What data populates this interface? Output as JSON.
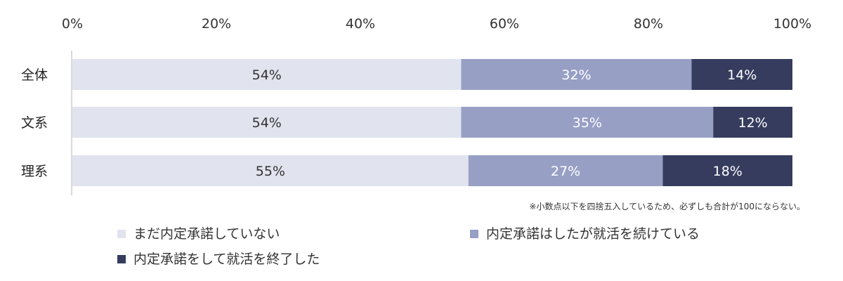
{
  "chart_data": {
    "type": "bar",
    "orientation": "horizontal",
    "stacked": true,
    "xlim": [
      0,
      100
    ],
    "x_ticks": [
      "0%",
      "20%",
      "40%",
      "60%",
      "80%",
      "100%"
    ],
    "categories": [
      "全体",
      "文系",
      "理系"
    ],
    "series": [
      {
        "name": "まだ内定承諾していない",
        "values": [
          54,
          54,
          55
        ],
        "labels": [
          "54%",
          "54%",
          "55%"
        ],
        "color": "#e1e3ef",
        "label_color": "#333333"
      },
      {
        "name": "内定承諾はしたが就活を続けている",
        "values": [
          32,
          35,
          27
        ],
        "labels": [
          "32%",
          "35%",
          "27%"
        ],
        "color": "#979fc5",
        "label_color": "#ffffff"
      },
      {
        "name": "内定承諾をして就活を終了した",
        "values": [
          14,
          12,
          18
        ],
        "labels": [
          "14%",
          "12%",
          "18%"
        ],
        "color": "#363c5e",
        "label_color": "#ffffff"
      }
    ],
    "note": "※小数点以下を四捨五入しているため、必ずしも合計が100にならない。",
    "legend_position": "bottom",
    "grid": false
  }
}
